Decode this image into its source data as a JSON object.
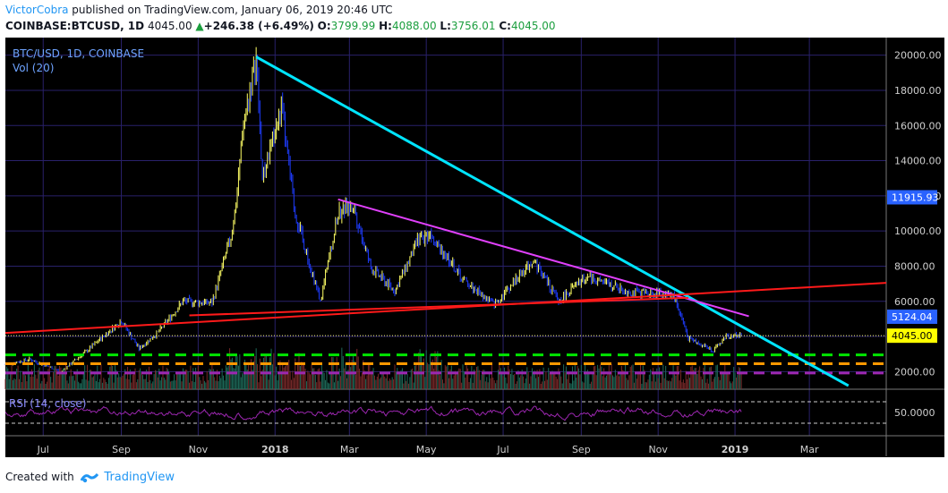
{
  "header": {
    "author": "VictorCobra",
    "published_text": " published on TradingView.com, January 06, 2019 20:46 UTC",
    "symbol": "COINBASE:BTCUSD, 1D",
    "last": "4045.00",
    "change": "+246.38 (+6.49%)",
    "open_label": "O:",
    "open": "3799.99",
    "high_label": "H:",
    "high": "4088.00",
    "low_label": "L:",
    "low": "3756.01",
    "close_label": "C:",
    "close": "4045.00"
  },
  "footer": {
    "created_with": "Created with",
    "brand": "TradingView"
  },
  "chart_data": {
    "type": "candlestick",
    "title": "BTC/USD, 1D, COINBASE",
    "volume_label": "Vol (20)",
    "rsi_label": "RSI (14, close)",
    "rsi_level_label": "50.0000",
    "x_ticks": [
      "Jul",
      "Sep",
      "Nov",
      "2018",
      "Mar",
      "May",
      "Jul",
      "Sep",
      "Nov",
      "2019",
      "Mar"
    ],
    "y_ticks": [
      2000,
      4000,
      6000,
      8000,
      10000,
      12000,
      14000,
      16000,
      18000,
      20000
    ],
    "y_tick_labels": [
      "2000.00",
      "4000.00",
      "6000.00",
      "8000.00",
      "10000.00",
      "12000.00",
      "14000.00",
      "16000.00",
      "18000.00",
      "20000.00"
    ],
    "ylim": [
      1000,
      21000
    ],
    "xlim": [
      "2017-06-01",
      "2019-05-01"
    ],
    "price_path": [
      [
        "2017-06-01",
        2400
      ],
      [
        "2017-06-20",
        2700
      ],
      [
        "2017-07-15",
        2000
      ],
      [
        "2017-08-05",
        3200
      ],
      [
        "2017-09-01",
        4900
      ],
      [
        "2017-09-15",
        3300
      ],
      [
        "2017-10-01",
        4300
      ],
      [
        "2017-10-20",
        6000
      ],
      [
        "2017-11-12",
        5900
      ],
      [
        "2017-11-28",
        10000
      ],
      [
        "2017-12-08",
        16500
      ],
      [
        "2017-12-17",
        19800
      ],
      [
        "2017-12-22",
        13000
      ],
      [
        "2018-01-06",
        17000
      ],
      [
        "2018-01-17",
        11000
      ],
      [
        "2018-02-06",
        6000
      ],
      [
        "2018-02-20",
        11000
      ],
      [
        "2018-03-04",
        11500
      ],
      [
        "2018-03-18",
        7900
      ],
      [
        "2018-04-06",
        6600
      ],
      [
        "2018-04-25",
        9500
      ],
      [
        "2018-05-05",
        9900
      ],
      [
        "2018-05-29",
        7300
      ],
      [
        "2018-06-24",
        5800
      ],
      [
        "2018-07-25",
        8400
      ],
      [
        "2018-08-14",
        6000
      ],
      [
        "2018-09-05",
        7400
      ],
      [
        "2018-10-10",
        6500
      ],
      [
        "2018-11-13",
        6400
      ],
      [
        "2018-11-25",
        3900
      ],
      [
        "2018-12-15",
        3200
      ],
      [
        "2018-12-25",
        4000
      ],
      [
        "2019-01-06",
        4045
      ]
    ],
    "last_price": 4045.0,
    "last_price_label": "4045.00",
    "price_labels": [
      {
        "value": 11915.93,
        "label": "11915.93",
        "color": "#2962ff"
      },
      {
        "value": 5124.04,
        "label": "5124.04",
        "color": "#2962ff"
      },
      {
        "value": 4045.0,
        "label": "4045.00",
        "color": "#ffff00"
      }
    ],
    "trendlines": [
      {
        "name": "cyan-downtrend",
        "color": "#00e5ff",
        "from": [
          "2017-12-17",
          19900
        ],
        "to": [
          "2019-04-01",
          1200
        ]
      },
      {
        "name": "magenta-downtrend",
        "color": "#e040fb",
        "from": [
          "2018-02-20",
          11800
        ],
        "to": [
          "2019-01-12",
          5150
        ]
      },
      {
        "name": "red-rising",
        "color": "#ff1a1a",
        "from": [
          "2017-06-01",
          4200
        ],
        "to": [
          "2019-05-01",
          7050
        ]
      },
      {
        "name": "red-horizontal",
        "color": "#ff1a1a",
        "from": [
          "2017-10-25",
          5200
        ],
        "to": [
          "2018-11-25",
          6200
        ]
      }
    ],
    "levels": [
      {
        "name": "green-support",
        "color": "#00e600",
        "value": 2950
      },
      {
        "name": "orange-support",
        "color": "#ff9800",
        "value": 2450
      },
      {
        "name": "purple-support",
        "color": "#9c27b0",
        "value": 1920
      }
    ]
  }
}
